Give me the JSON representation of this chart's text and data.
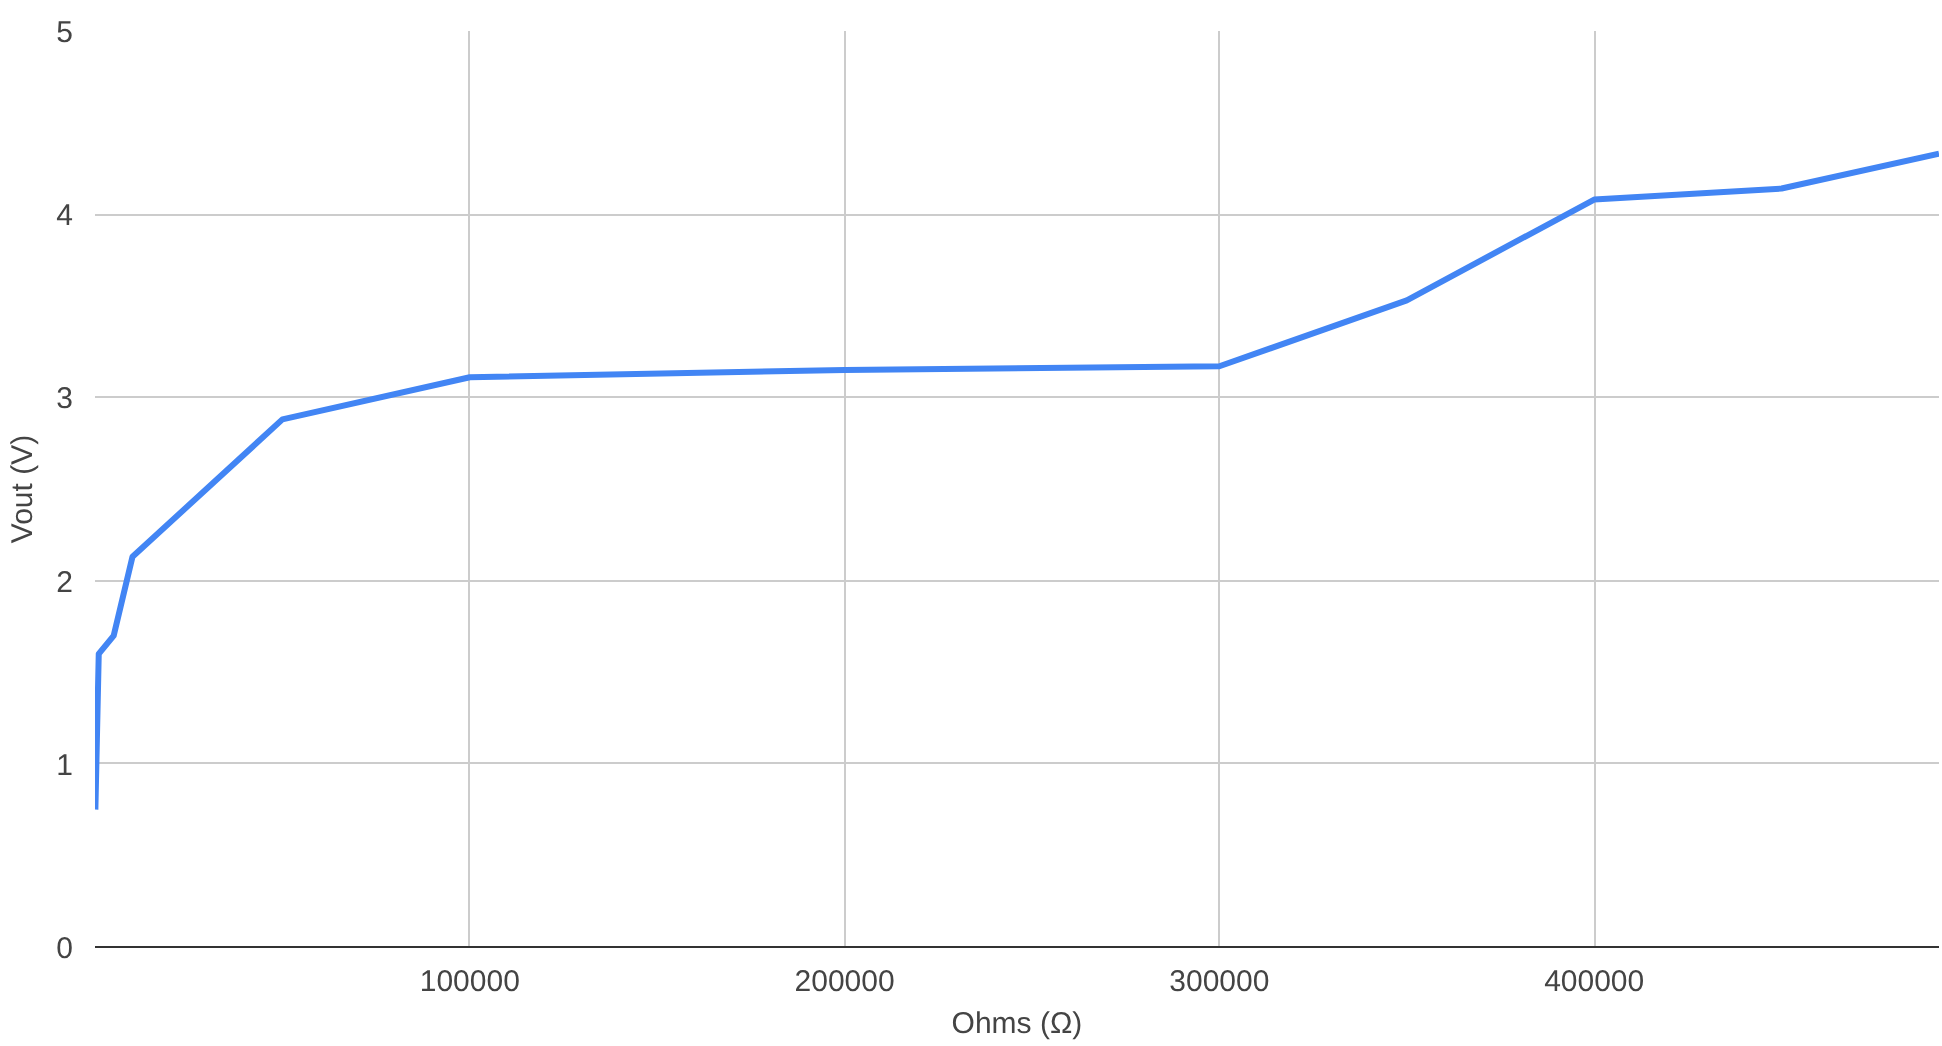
{
  "chart_data": {
    "type": "line",
    "xlabel": "Ohms (Ω)",
    "ylabel": "Vout (V)",
    "x": [
      100,
      1000,
      5000,
      10000,
      50000,
      100000,
      200000,
      300000,
      350000,
      400000,
      450000,
      492000
    ],
    "series": [
      {
        "color": "#4285f4",
        "values": [
          0.75,
          1.6,
          1.7,
          2.13,
          2.88,
          3.11,
          3.15,
          3.17,
          3.53,
          4.08,
          4.14,
          4.33
        ]
      }
    ],
    "xlim": [
      0,
      492000
    ],
    "ylim": [
      0,
      5
    ],
    "xticks": [
      100000,
      200000,
      300000,
      400000
    ],
    "yticks": [
      0,
      1,
      2,
      3,
      4,
      5
    ],
    "grid": true,
    "marker": "none",
    "line_style": "solid"
  }
}
